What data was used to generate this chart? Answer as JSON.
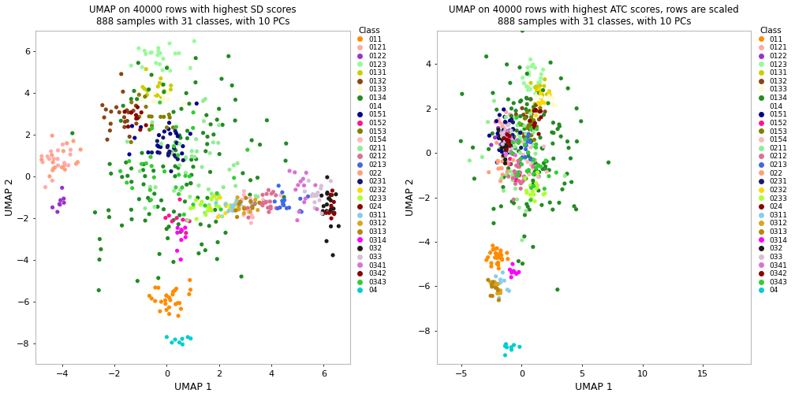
{
  "title1": "UMAP on 40000 rows with highest SD scores\n888 samples with 31 classes, with 10 PCs",
  "title2": "UMAP on 40000 rows with highest ATC scores, rows are scaled\n888 samples with 31 classes, with 10 PCs",
  "xlabel": "UMAP 1",
  "ylabel": "UMAP 2",
  "legend_title": "Class",
  "classes": [
    "011",
    "0121",
    "0122",
    "0123",
    "0131",
    "0132",
    "0133",
    "0134",
    "014",
    "0151",
    "0152",
    "0153",
    "0154",
    "0211",
    "0212",
    "0213",
    "022",
    "0231",
    "0232",
    "0233",
    "024",
    "0311",
    "0312",
    "0313",
    "0314",
    "032",
    "033",
    "0341",
    "0342",
    "0343",
    "04"
  ],
  "colors_map": {
    "011": "#FF8C00",
    "0121": "#FFAAAA",
    "0122": "#9932CC",
    "0123": "#98FB98",
    "0131": "#CDCD00",
    "0132": "#8B4513",
    "0133": "#FFFACD",
    "0134": "#228B22",
    "014": "#FFFFFF",
    "0151": "#00008B",
    "0152": "#FF1493",
    "0153": "#808000",
    "0154": "#FFB6C1",
    "0211": "#90EE90",
    "0212": "#DB7093",
    "0213": "#4169E1",
    "022": "#FFA07A",
    "0231": "#191970",
    "0232": "#FFD700",
    "0233": "#ADFF2F",
    "024": "#8B0000",
    "0311": "#87CEEB",
    "0312": "#DAA520",
    "0313": "#B8860B",
    "0314": "#FF00FF",
    "032": "#1C1C1C",
    "033": "#D8BFD8",
    "0341": "#DA70D6",
    "0342": "#8B0000",
    "0343": "#32CD32",
    "04": "#00CED1"
  },
  "plot1_xlim": [
    -5,
    7
  ],
  "plot1_ylim": [
    -9,
    7
  ],
  "plot2_xlim": [
    -7,
    19
  ],
  "plot2_ylim": [
    -9.5,
    5.5
  ]
}
